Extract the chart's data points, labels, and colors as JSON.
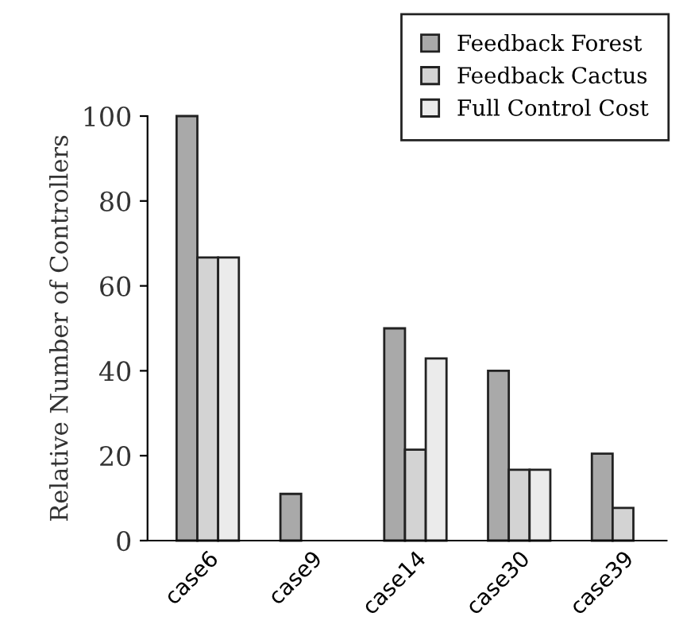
{
  "chart_data": {
    "type": "bar",
    "ylabel": "Relative Number of Controllers",
    "categories": [
      "case6",
      "case9",
      "case14",
      "case30",
      "case39"
    ],
    "series": [
      {
        "name": "Feedback Forest",
        "color": "#a9a9a9",
        "values": [
          100,
          11,
          50,
          40,
          20.5
        ]
      },
      {
        "name": "Feedback Cactus",
        "color": "#d3d3d3",
        "values": [
          66.7,
          0,
          21.4,
          16.7,
          7.7
        ]
      },
      {
        "name": "Full Control Cost",
        "color": "#ebebeb",
        "values": [
          66.7,
          0,
          42.9,
          16.7,
          0
        ]
      }
    ],
    "ylim": [
      0,
      100
    ],
    "yticks": [
      0,
      20,
      40,
      60,
      80,
      100
    ],
    "grid": false,
    "legend": "top right"
  }
}
